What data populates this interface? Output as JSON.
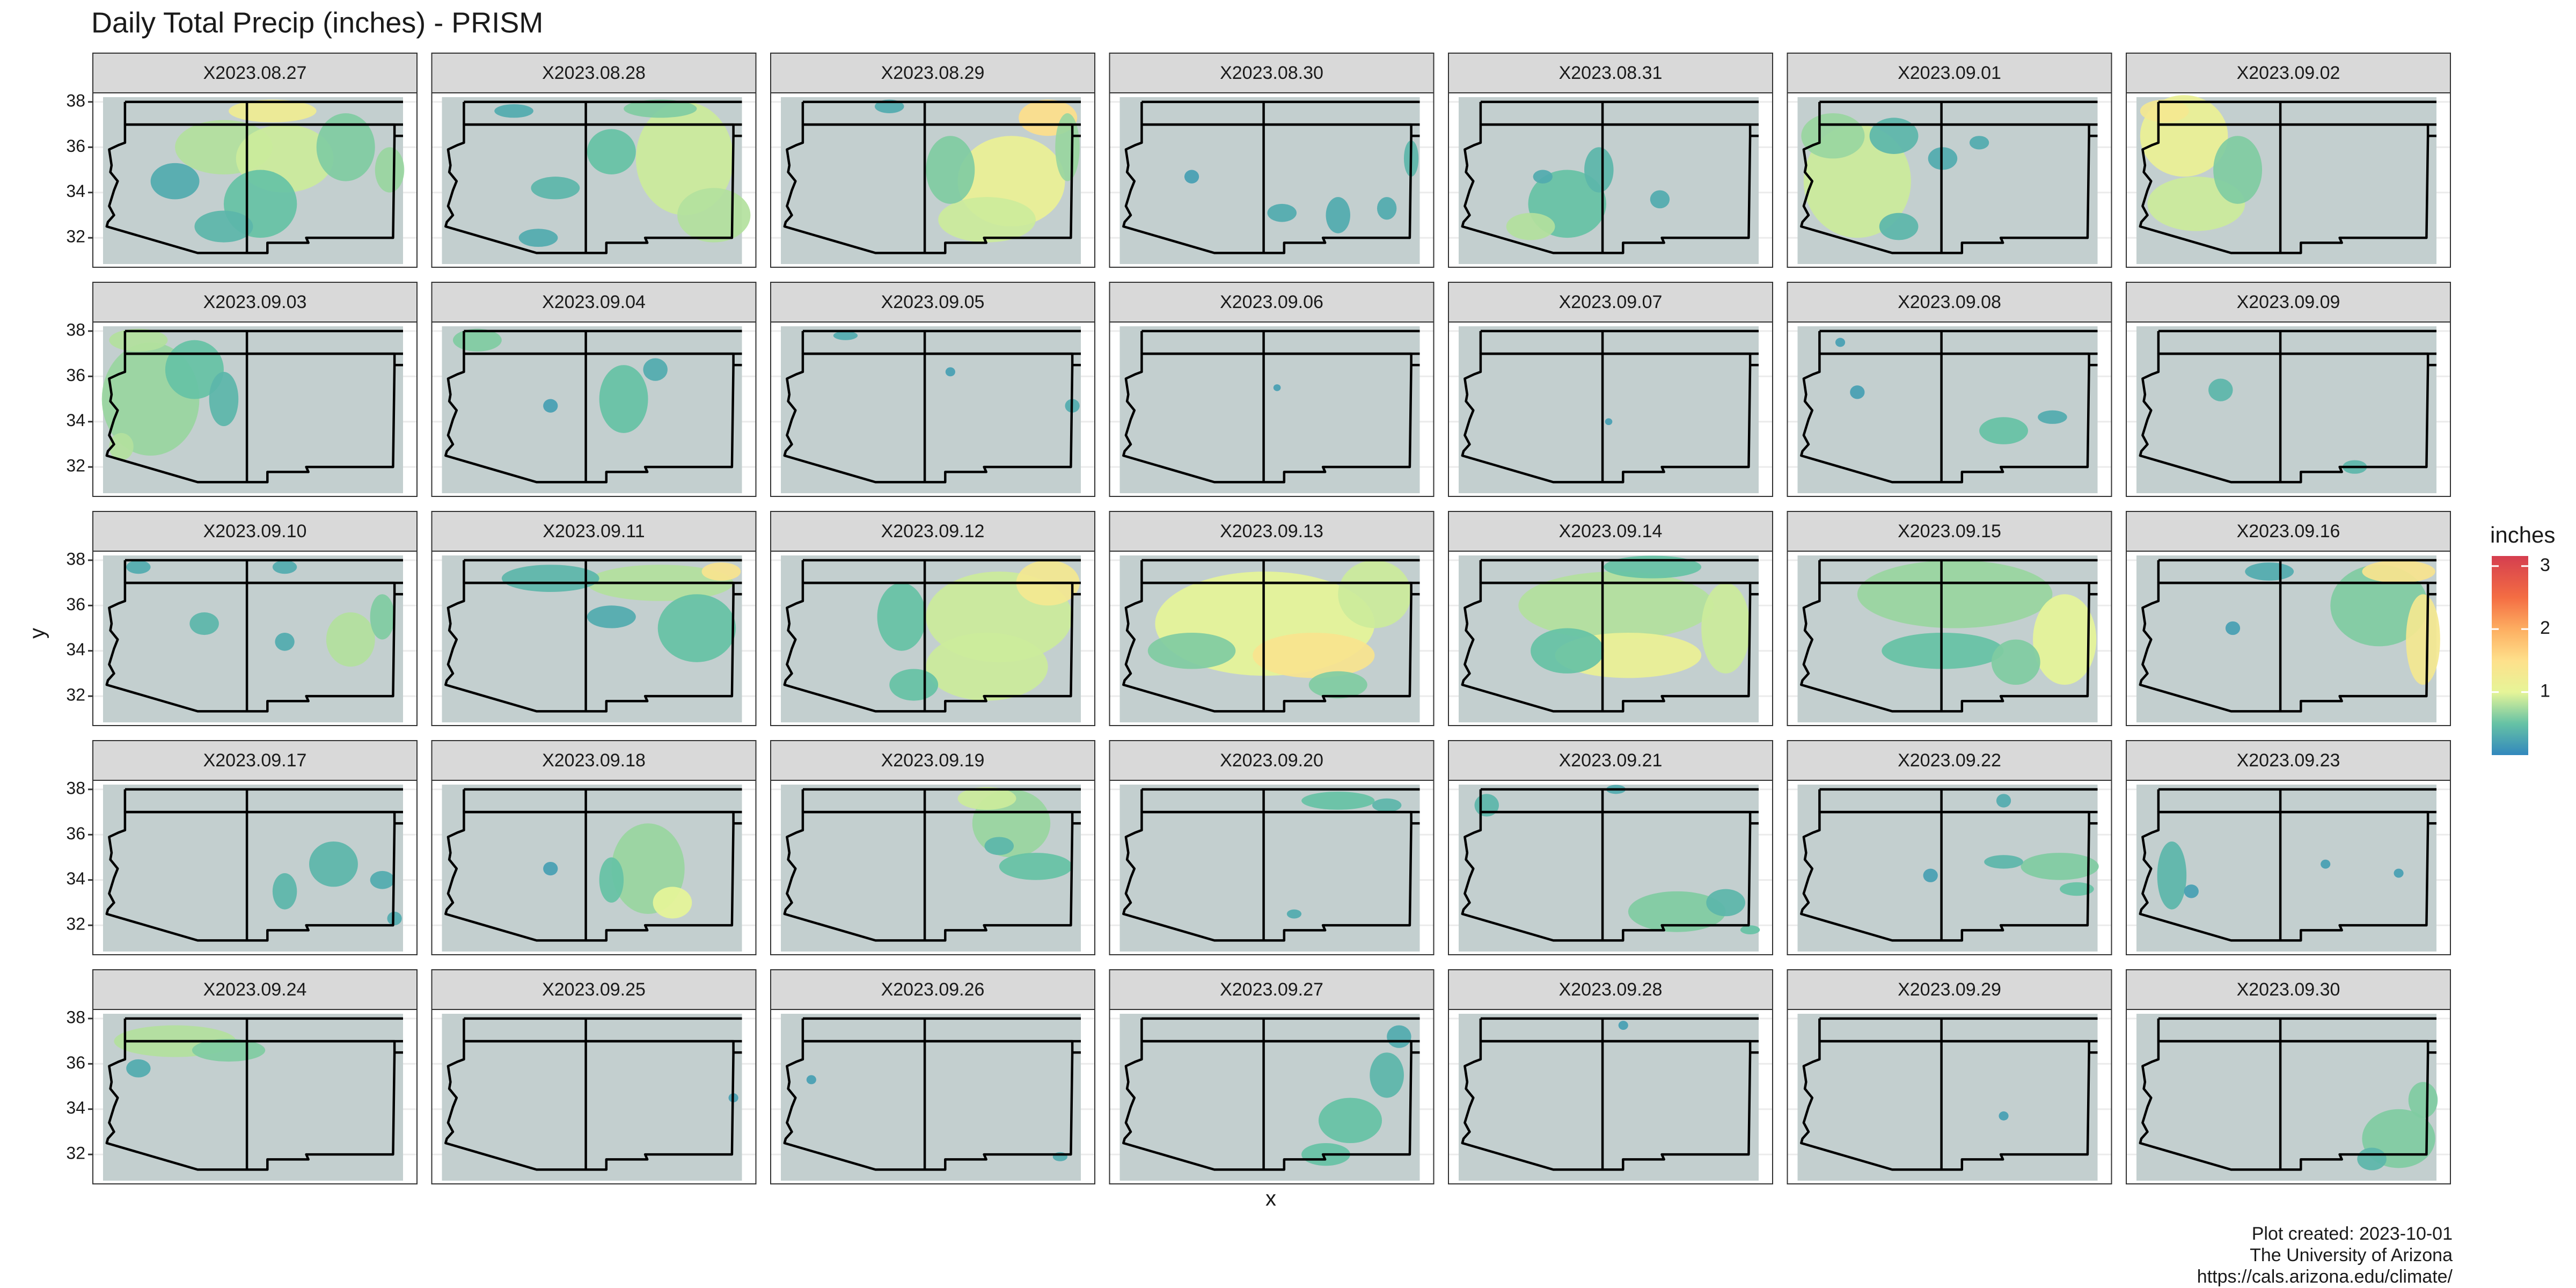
{
  "chart_data": {
    "type": "facet_raster",
    "title": "Daily Total Precip (inches) - PRISM",
    "x_label": "x",
    "y_label": "y",
    "xlim": [
      -114.95,
      -102.65
    ],
    "ylim": [
      30.7,
      38.4
    ],
    "yticks": [
      32,
      34,
      36,
      38
    ],
    "grid": true,
    "map_fill": "#c3cfcf",
    "boundary_color": "#000000",
    "legend": {
      "title": "inches",
      "lim": [
        0,
        3.16
      ],
      "ticks": [
        1,
        2,
        3
      ],
      "position": "right",
      "colorscale": [
        [
          0,
          "#3288bd"
        ],
        [
          0.5,
          "#66c2a5"
        ],
        [
          1,
          "#e6f598"
        ],
        [
          1.5,
          "#fee08b"
        ],
        [
          2,
          "#fdae61"
        ],
        [
          2.5,
          "#f46d43"
        ],
        [
          3.16,
          "#d53e4f"
        ]
      ]
    },
    "caption": [
      "Plot created: 2023-10-01",
      "The University of Arizona",
      "https://cals.arizona.edu/climate/"
    ],
    "panels": [
      {
        "label": "X2023.08.27",
        "blobs": [
          [
            -110,
            36,
            2,
            1.2,
            0.8
          ],
          [
            -107.5,
            35.5,
            2,
            1.5,
            0.9
          ],
          [
            -108.5,
            33.5,
            1.5,
            1.5,
            0.5
          ],
          [
            -105,
            36,
            1.2,
            1.5,
            0.6
          ],
          [
            -103.2,
            35,
            0.6,
            1,
            0.7
          ],
          [
            -112,
            34.5,
            1,
            0.8,
            0.3
          ],
          [
            -110,
            32.5,
            1.2,
            0.7,
            0.4
          ],
          [
            -108,
            37.6,
            1.8,
            0.5,
            1.2
          ]
        ]
      },
      {
        "label": "X2023.08.28",
        "blobs": [
          [
            -105,
            35.5,
            2,
            2.5,
            0.9
          ],
          [
            -103.8,
            33,
            1.5,
            1.2,
            0.8
          ],
          [
            -108,
            35.8,
            1,
            1,
            0.5
          ],
          [
            -110.3,
            34.2,
            1,
            0.5,
            0.4
          ],
          [
            -111,
            32,
            0.8,
            0.4,
            0.3
          ],
          [
            -106,
            37.7,
            1.5,
            0.4,
            0.6
          ],
          [
            -112,
            37.6,
            0.8,
            0.3,
            0.3
          ]
        ]
      },
      {
        "label": "X2023.08.29",
        "blobs": [
          [
            -105.5,
            34.5,
            2.2,
            2,
            1.1
          ],
          [
            -104,
            37.3,
            1.2,
            0.8,
            1.5
          ],
          [
            -106.5,
            32.8,
            2,
            1,
            0.9
          ],
          [
            -108,
            35,
            1,
            1.5,
            0.6
          ],
          [
            -103.2,
            36,
            0.5,
            1.5,
            0.7
          ],
          [
            -110.5,
            37.8,
            0.6,
            0.3,
            0.3
          ]
        ]
      },
      {
        "label": "X2023.08.30",
        "blobs": [
          [
            -108.3,
            33.1,
            0.6,
            0.4,
            0.3
          ],
          [
            -106,
            33,
            0.5,
            0.8,
            0.3
          ],
          [
            -104,
            33.3,
            0.4,
            0.5,
            0.3
          ],
          [
            -103,
            35.5,
            0.3,
            0.8,
            0.4
          ],
          [
            -112,
            34.7,
            0.3,
            0.3,
            0.2
          ]
        ]
      },
      {
        "label": "X2023.08.31",
        "blobs": [
          [
            -110.5,
            33.5,
            1.6,
            1.5,
            0.5
          ],
          [
            -112,
            32.5,
            1,
            0.6,
            0.8
          ],
          [
            -109.2,
            35,
            0.6,
            1,
            0.4
          ],
          [
            -111.5,
            34.7,
            0.4,
            0.3,
            0.3
          ],
          [
            -106.7,
            33.7,
            0.4,
            0.4,
            0.3
          ]
        ]
      },
      {
        "label": "X2023.09.01",
        "blobs": [
          [
            -112.5,
            34.5,
            2.2,
            2.5,
            0.9
          ],
          [
            -113.5,
            36.5,
            1.3,
            1,
            0.7
          ],
          [
            -111,
            36.5,
            1,
            0.8,
            0.4
          ],
          [
            -109,
            35.5,
            0.6,
            0.5,
            0.3
          ],
          [
            -107.5,
            36.2,
            0.4,
            0.3,
            0.3
          ],
          [
            -110.8,
            32.5,
            0.8,
            0.6,
            0.4
          ]
        ]
      },
      {
        "label": "X2023.09.02",
        "blobs": [
          [
            -113,
            36.5,
            1.8,
            1.8,
            1.1
          ],
          [
            -112.5,
            33.5,
            2,
            1.2,
            0.9
          ],
          [
            -110.8,
            35,
            1,
            1.5,
            0.6
          ],
          [
            -113.8,
            37.6,
            1,
            0.5,
            1.3
          ]
        ]
      },
      {
        "label": "X2023.09.03",
        "blobs": [
          [
            -113,
            35,
            2,
            2.5,
            0.7
          ],
          [
            -111.2,
            36.3,
            1.2,
            1.3,
            0.5
          ],
          [
            -113.5,
            37.6,
            1.2,
            0.5,
            0.8
          ],
          [
            -110,
            35,
            0.6,
            1.2,
            0.4
          ],
          [
            -114.2,
            32.9,
            0.5,
            0.6,
            0.8
          ]
        ]
      },
      {
        "label": "X2023.09.04",
        "blobs": [
          [
            -113.5,
            37.6,
            1,
            0.5,
            0.6
          ],
          [
            -107.5,
            35,
            1,
            1.5,
            0.5
          ],
          [
            -106.2,
            36.3,
            0.5,
            0.5,
            0.3
          ],
          [
            -110.5,
            34.7,
            0.3,
            0.3,
            0.2
          ]
        ]
      },
      {
        "label": "X2023.09.05",
        "blobs": [
          [
            -112.3,
            37.8,
            0.5,
            0.2,
            0.3
          ],
          [
            -103,
            34.7,
            0.3,
            0.3,
            0.3
          ],
          [
            -108,
            36.2,
            0.2,
            0.2,
            0.2
          ]
        ]
      },
      {
        "label": "X2023.09.06",
        "blobs": [
          [
            -108.5,
            35.5,
            0.15,
            0.15,
            0.2
          ]
        ]
      },
      {
        "label": "X2023.09.07",
        "blobs": [
          [
            -108.8,
            34,
            0.15,
            0.15,
            0.2
          ]
        ]
      },
      {
        "label": "X2023.09.08",
        "blobs": [
          [
            -106.5,
            33.6,
            1,
            0.6,
            0.5
          ],
          [
            -104.5,
            34.2,
            0.6,
            0.3,
            0.3
          ],
          [
            -112.5,
            35.3,
            0.3,
            0.3,
            0.2
          ],
          [
            -113.2,
            37.5,
            0.2,
            0.2,
            0.2
          ]
        ]
      },
      {
        "label": "X2023.09.09",
        "blobs": [
          [
            -111.5,
            35.4,
            0.5,
            0.5,
            0.4
          ],
          [
            -106,
            32,
            0.5,
            0.3,
            0.4
          ]
        ]
      },
      {
        "label": "X2023.09.10",
        "blobs": [
          [
            -110.8,
            35.2,
            0.6,
            0.5,
            0.4
          ],
          [
            -104.8,
            34.5,
            1,
            1.2,
            0.8
          ],
          [
            -103.5,
            35.5,
            0.5,
            1,
            0.6
          ],
          [
            -107.5,
            34.4,
            0.4,
            0.4,
            0.3
          ],
          [
            -113.5,
            37.7,
            0.5,
            0.3,
            0.3
          ],
          [
            -107.5,
            37.7,
            0.5,
            0.3,
            0.3
          ]
        ]
      },
      {
        "label": "X2023.09.11",
        "blobs": [
          [
            -106,
            37,
            3,
            0.8,
            0.8
          ],
          [
            -104.5,
            35,
            1.6,
            1.5,
            0.5
          ],
          [
            -110.5,
            37.2,
            2,
            0.6,
            0.4
          ],
          [
            -103.5,
            37.5,
            0.8,
            0.4,
            1.4
          ],
          [
            -108,
            35.5,
            1,
            0.5,
            0.3
          ]
        ]
      },
      {
        "label": "X2023.09.12",
        "blobs": [
          [
            -106,
            35.5,
            3,
            2,
            0.9
          ],
          [
            -106.5,
            33.3,
            2.5,
            1.5,
            0.9
          ],
          [
            -104,
            37,
            1.3,
            1,
            1.3
          ],
          [
            -109.5,
            32.5,
            1,
            0.7,
            0.5
          ],
          [
            -110,
            35.5,
            1,
            1.5,
            0.5
          ]
        ]
      },
      {
        "label": "X2023.09.13",
        "blobs": [
          [
            -109,
            35.2,
            4.5,
            2.3,
            1.0
          ],
          [
            -107,
            33.8,
            2.5,
            1,
            1.4
          ],
          [
            -112,
            34,
            1.8,
            0.8,
            0.6
          ],
          [
            -104.5,
            36.5,
            1.5,
            1.5,
            0.9
          ],
          [
            -106,
            32.5,
            1.2,
            0.6,
            0.6
          ]
        ]
      },
      {
        "label": "X2023.09.14",
        "blobs": [
          [
            -108.5,
            36,
            4,
            1.5,
            0.8
          ],
          [
            -108,
            33.8,
            3,
            1,
            1.1
          ],
          [
            -110.5,
            34,
            1.5,
            1,
            0.5
          ],
          [
            -104,
            35,
            1,
            2,
            0.9
          ],
          [
            -107,
            37.7,
            2,
            0.5,
            0.5
          ]
        ]
      },
      {
        "label": "X2023.09.15",
        "blobs": [
          [
            -108.5,
            36.5,
            4,
            1.5,
            0.7
          ],
          [
            -104,
            34.5,
            1.3,
            2,
            1.0
          ],
          [
            -109,
            34,
            2.5,
            0.8,
            0.5
          ],
          [
            -106,
            33.5,
            1,
            1,
            0.6
          ]
        ]
      },
      {
        "label": "X2023.09.16",
        "blobs": [
          [
            -105,
            36,
            2,
            1.8,
            0.6
          ],
          [
            -103.2,
            34.5,
            0.7,
            2,
            1.3
          ],
          [
            -104.2,
            37.5,
            1.5,
            0.5,
            1.4
          ],
          [
            -109.5,
            37.5,
            1,
            0.4,
            0.3
          ],
          [
            -111,
            35,
            0.3,
            0.3,
            0.2
          ]
        ]
      },
      {
        "label": "X2023.09.17",
        "blobs": [
          [
            -105.5,
            34.7,
            1,
            1,
            0.4
          ],
          [
            -107.5,
            33.5,
            0.5,
            0.8,
            0.4
          ],
          [
            -103.5,
            34,
            0.5,
            0.4,
            0.3
          ],
          [
            -103,
            32.3,
            0.3,
            0.3,
            0.3
          ]
        ]
      },
      {
        "label": "X2023.09.18",
        "blobs": [
          [
            -106.5,
            34.5,
            1.5,
            2,
            0.7
          ],
          [
            -105.5,
            33,
            0.8,
            0.7,
            1.0
          ],
          [
            -108,
            34,
            0.5,
            1,
            0.5
          ],
          [
            -110.5,
            34.5,
            0.3,
            0.3,
            0.2
          ]
        ]
      },
      {
        "label": "X2023.09.19",
        "blobs": [
          [
            -105.5,
            36.5,
            1.6,
            1.5,
            0.7
          ],
          [
            -104.5,
            34.6,
            1.5,
            0.6,
            0.5
          ],
          [
            -106.5,
            37.6,
            1.2,
            0.5,
            0.9
          ],
          [
            -106,
            35.5,
            0.6,
            0.4,
            0.4
          ]
        ]
      },
      {
        "label": "X2023.09.20",
        "blobs": [
          [
            -106,
            37.5,
            1.5,
            0.4,
            0.5
          ],
          [
            -104,
            37.3,
            0.6,
            0.3,
            0.4
          ],
          [
            -107.8,
            32.5,
            0.3,
            0.2,
            0.3
          ]
        ]
      },
      {
        "label": "X2023.09.21",
        "blobs": [
          [
            -106,
            32.6,
            2,
            0.9,
            0.6
          ],
          [
            -104,
            33,
            0.8,
            0.6,
            0.4
          ],
          [
            -113.8,
            37.3,
            0.5,
            0.5,
            0.4
          ],
          [
            -108.5,
            38,
            0.4,
            0.2,
            0.3
          ],
          [
            -103,
            31.8,
            0.4,
            0.2,
            0.5
          ]
        ]
      },
      {
        "label": "X2023.09.22",
        "blobs": [
          [
            -104.2,
            34.6,
            1.6,
            0.6,
            0.6
          ],
          [
            -103.5,
            33.6,
            0.7,
            0.3,
            0.5
          ],
          [
            -106.5,
            34.8,
            0.8,
            0.3,
            0.4
          ],
          [
            -106.5,
            37.5,
            0.3,
            0.3,
            0.3
          ],
          [
            -109.5,
            34.2,
            0.3,
            0.3,
            0.2
          ]
        ]
      },
      {
        "label": "X2023.09.23",
        "blobs": [
          [
            -113.5,
            34.2,
            0.6,
            1.5,
            0.4
          ],
          [
            -112.7,
            33.5,
            0.3,
            0.3,
            0.2
          ],
          [
            -107.2,
            34.7,
            0.2,
            0.2,
            0.2
          ],
          [
            -104.2,
            34.3,
            0.2,
            0.2,
            0.2
          ]
        ]
      },
      {
        "label": "X2023.09.24",
        "blobs": [
          [
            -112,
            37,
            2.5,
            0.7,
            0.8
          ],
          [
            -109.8,
            36.6,
            1.5,
            0.5,
            0.6
          ],
          [
            -113.5,
            35.8,
            0.5,
            0.4,
            0.3
          ]
        ]
      },
      {
        "label": "X2023.09.25",
        "blobs": [
          [
            -103,
            34.5,
            0.2,
            0.2,
            0.2
          ]
        ]
      },
      {
        "label": "X2023.09.26",
        "blobs": [
          [
            -103.5,
            31.9,
            0.3,
            0.2,
            0.3
          ],
          [
            -113.7,
            35.3,
            0.2,
            0.2,
            0.2
          ]
        ]
      },
      {
        "label": "X2023.09.27",
        "blobs": [
          [
            -105.5,
            33.5,
            1.3,
            1,
            0.5
          ],
          [
            -104,
            35.5,
            0.7,
            1,
            0.4
          ],
          [
            -106.5,
            32,
            1,
            0.5,
            0.5
          ],
          [
            -103.5,
            37.2,
            0.5,
            0.5,
            0.3
          ]
        ]
      },
      {
        "label": "X2023.09.28",
        "blobs": [
          [
            -108.2,
            37.7,
            0.2,
            0.2,
            0.2
          ]
        ]
      },
      {
        "label": "X2023.09.29",
        "blobs": [
          [
            -106.5,
            33.7,
            0.2,
            0.2,
            0.2
          ]
        ]
      },
      {
        "label": "X2023.09.30",
        "blobs": [
          [
            -104.2,
            32.7,
            1.5,
            1.3,
            0.6
          ],
          [
            -103.2,
            34.4,
            0.6,
            0.8,
            0.6
          ],
          [
            -105.3,
            31.8,
            0.6,
            0.5,
            0.4
          ]
        ]
      }
    ]
  }
}
